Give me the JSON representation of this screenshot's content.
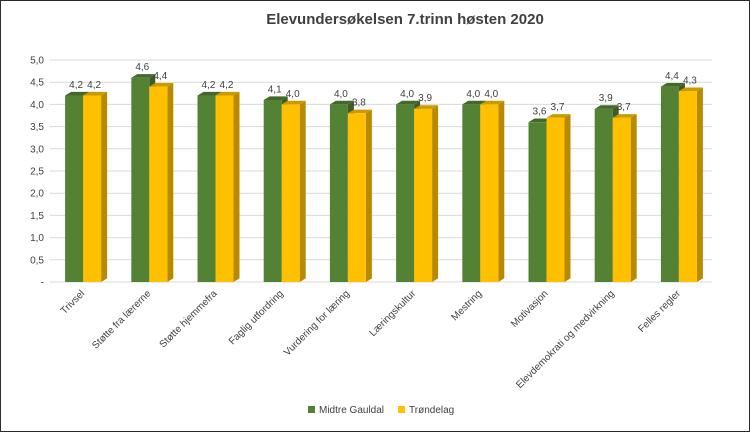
{
  "chart_data": {
    "type": "bar",
    "title": "Elevundersøkelsen 7.trinn høsten 2020",
    "xlabel": "",
    "ylabel": "",
    "ylim": [
      0,
      5
    ],
    "yticks": [
      "-",
      "0,5",
      "1,0",
      "1,5",
      "2,0",
      "2,5",
      "3,0",
      "3,5",
      "4,0",
      "4,5",
      "5,0"
    ],
    "grid": true,
    "legend_position": "bottom",
    "categories": [
      "Trivsel",
      "Støtte fra lærerne",
      "Støtte hjemmefra",
      "Faglig utfordring",
      "Vurdering for læring",
      "Læringskultur",
      "Mestring",
      "Motivasjon",
      "Elevdemokrati og medvirkning",
      "Felles regler"
    ],
    "series": [
      {
        "name": "Midtre Gauldal",
        "color": "#548235",
        "values": [
          4.2,
          4.6,
          4.2,
          4.1,
          4.0,
          4.0,
          4.0,
          3.6,
          3.9,
          4.4
        ],
        "labels": [
          "4,2",
          "4,6",
          "4,2",
          "4,1",
          "4,0",
          "4,0",
          "4,0",
          "3,6",
          "3,9",
          "4,4"
        ]
      },
      {
        "name": "Trøndelag",
        "color": "#FFC000",
        "values": [
          4.2,
          4.4,
          4.2,
          4.0,
          3.8,
          3.9,
          4.0,
          3.7,
          3.7,
          4.3
        ],
        "labels": [
          "4,2",
          "4,4",
          "4,2",
          "4,0",
          "3,8",
          "3,9",
          "4,0",
          "3,7",
          "3,7",
          "4,3"
        ]
      }
    ]
  }
}
